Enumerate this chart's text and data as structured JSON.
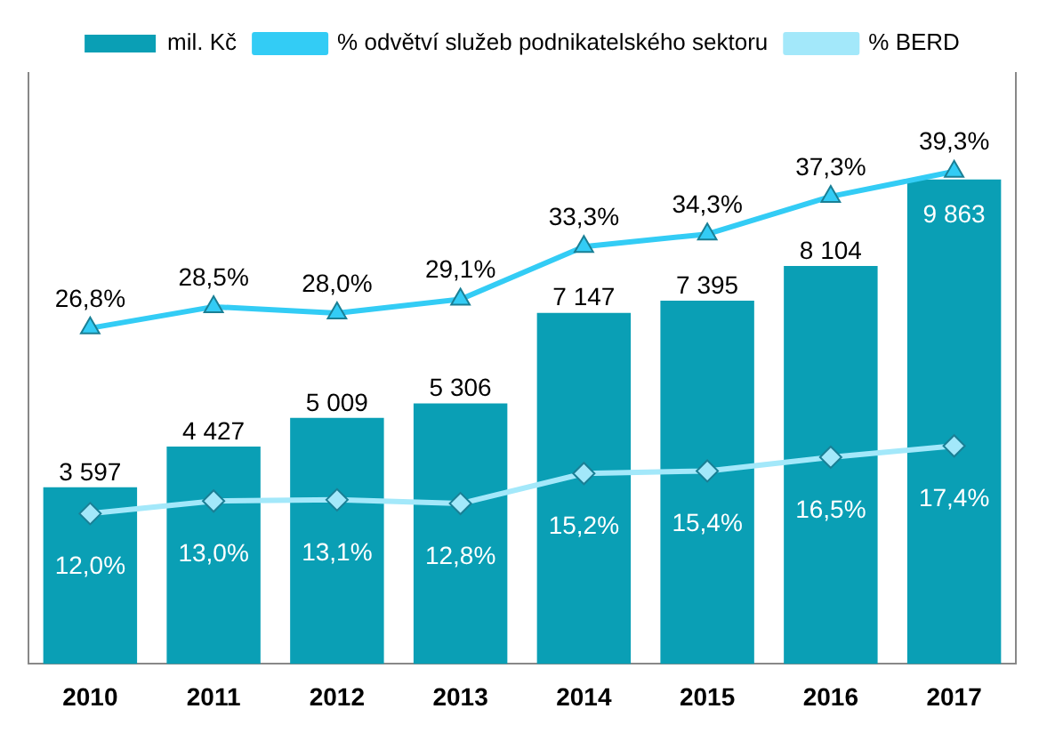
{
  "chart_data": {
    "type": "bar",
    "categories": [
      "2010",
      "2011",
      "2012",
      "2013",
      "2014",
      "2015",
      "2016",
      "2017"
    ],
    "series": [
      {
        "name": "mil. Kč",
        "color": "#0a9fb5",
        "values": [
          3597,
          4427,
          5009,
          5306,
          7147,
          7395,
          8104,
          9863
        ],
        "value_labels": [
          "3 597",
          "4 427",
          "5 009",
          "5 306",
          "7 147",
          "7 395",
          "8 104",
          "9 863"
        ]
      },
      {
        "name": "% odvětví služeb podnikatelského sektoru",
        "type": "line",
        "axis": "y2",
        "color": "#33ccf5",
        "marker": "triangle",
        "values": [
          26.8,
          28.5,
          28.0,
          29.1,
          33.3,
          34.3,
          37.3,
          39.3
        ],
        "value_labels": [
          "26,8%",
          "28,5%",
          "28,0%",
          "29,1%",
          "33,3%",
          "34,3%",
          "37,3%",
          "39,3%"
        ]
      },
      {
        "name": "% BERD",
        "type": "line",
        "axis": "y2",
        "color": "#a3e8fa",
        "marker": "diamond",
        "values": [
          12.0,
          13.0,
          13.1,
          12.8,
          15.2,
          15.4,
          16.5,
          17.4
        ],
        "value_labels": [
          "12,0%",
          "13,0%",
          "13,1%",
          "12,8%",
          "15,2%",
          "15,4%",
          "16,5%",
          "17,4%"
        ]
      }
    ],
    "legend": "top",
    "grid": false,
    "tick_labels": "x"
  }
}
